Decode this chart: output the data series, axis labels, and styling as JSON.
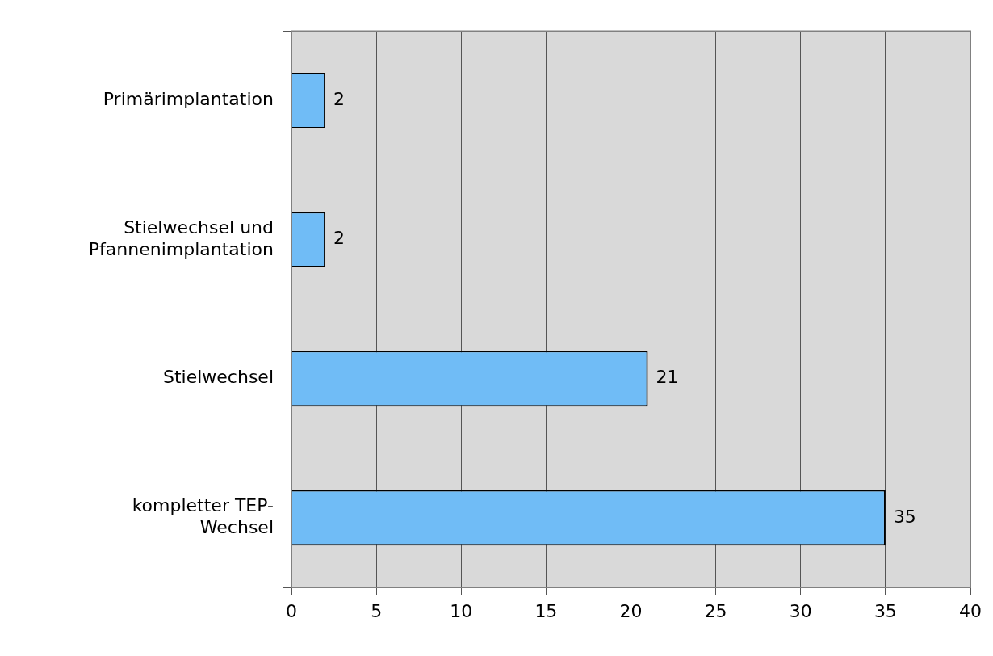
{
  "chart_data": {
    "type": "bar",
    "orientation": "horizontal",
    "categories": [
      "Primärimplantation",
      "Stielwechsel und Pfannenimplantation",
      "Stielwechsel",
      "kompletter TEP-Wechsel"
    ],
    "values": [
      2,
      2,
      21,
      35
    ],
    "color": "#70bcf6",
    "xlim": [
      0,
      40
    ],
    "xticks": [
      0,
      5,
      10,
      15,
      20,
      25,
      30,
      35,
      40
    ],
    "grid": "x",
    "data_labels": true,
    "legend": false
  }
}
